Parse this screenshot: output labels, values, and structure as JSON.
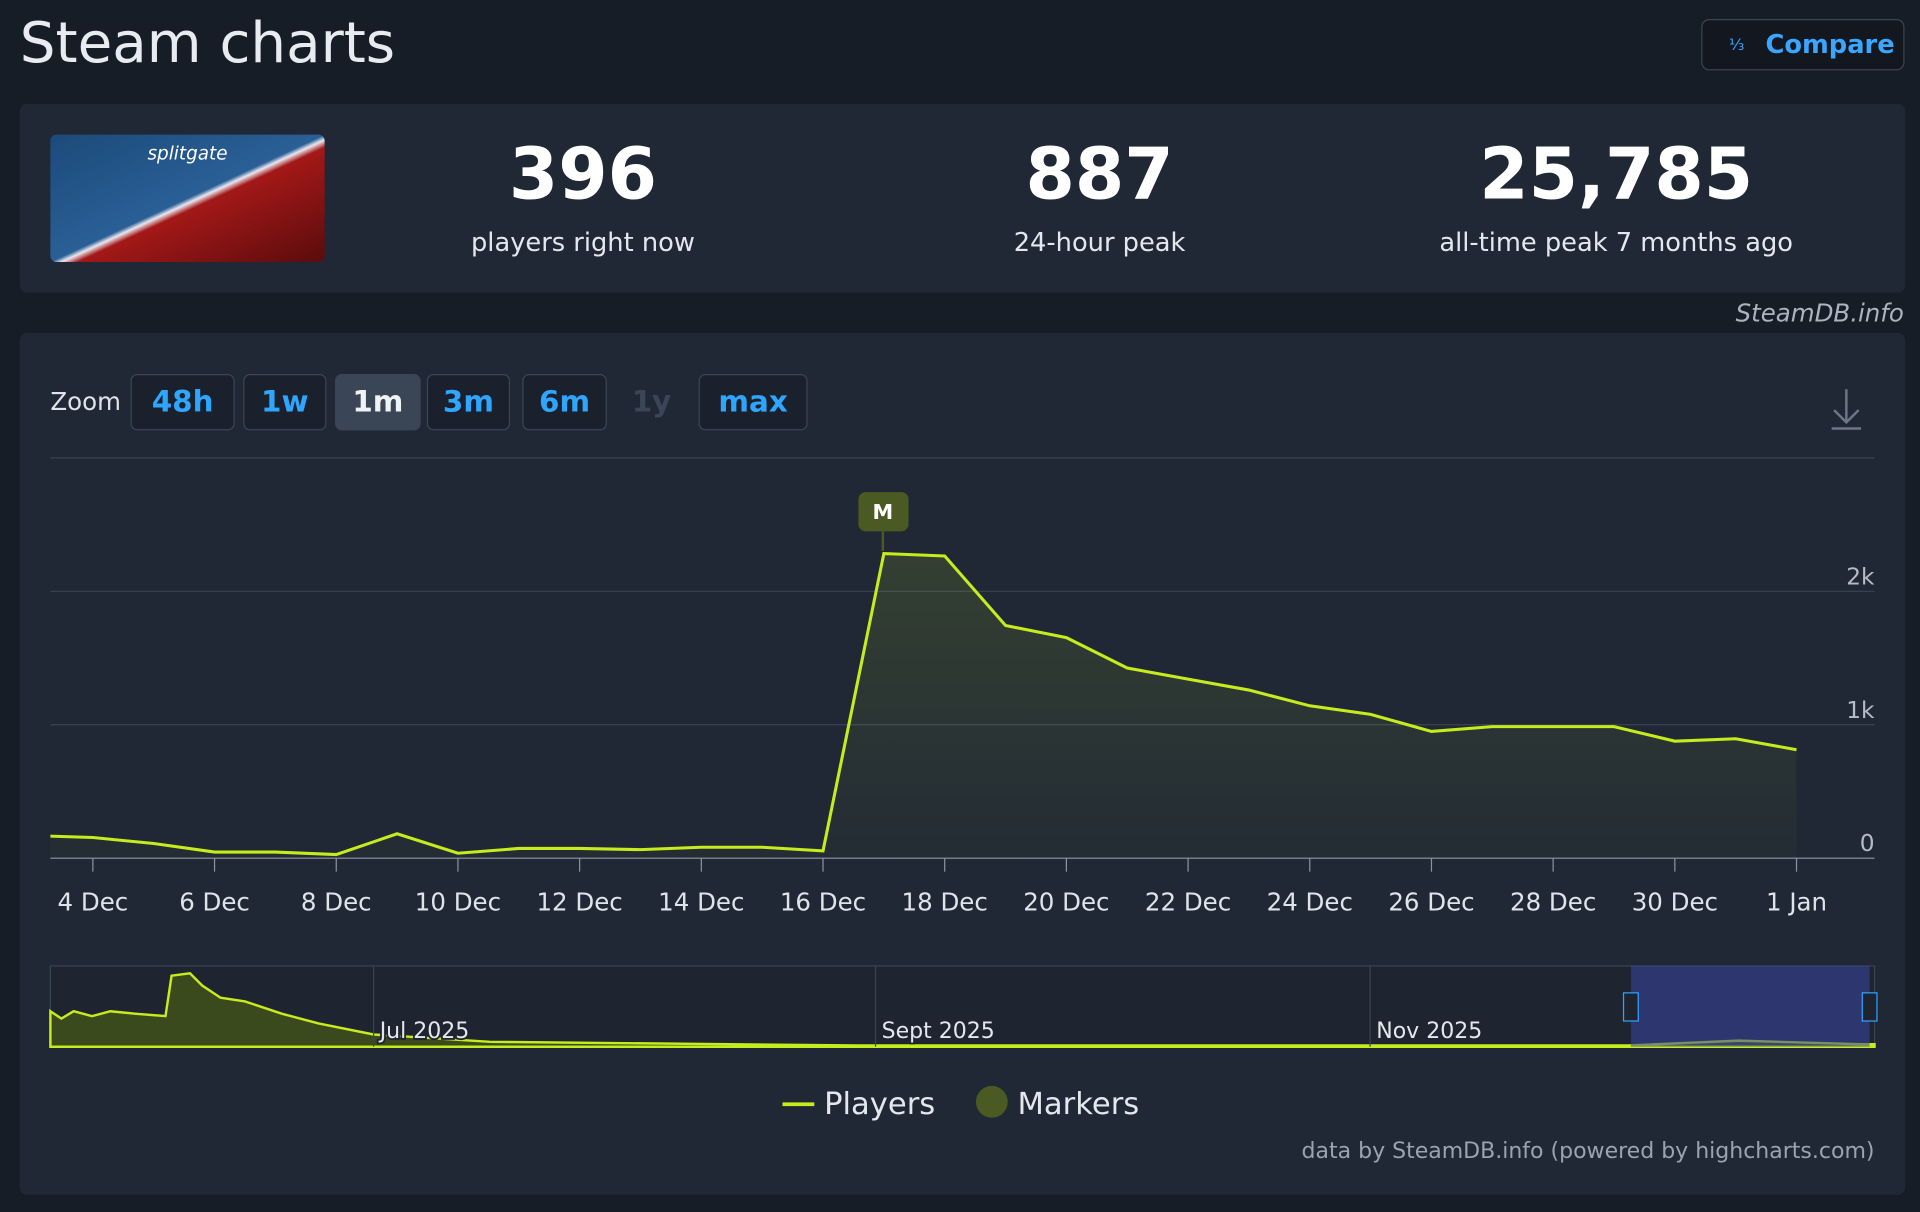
{
  "header": {
    "title": "Steam charts",
    "compare": "Compare"
  },
  "stats": [
    {
      "value": "396",
      "label": "players right now"
    },
    {
      "value": "887",
      "label": "24-hour peak"
    },
    {
      "value": "25,785",
      "label": "all-time peak 7 months ago"
    }
  ],
  "source": "SteamDB.info",
  "zoom": {
    "label": "Zoom",
    "options": [
      "48h",
      "1w",
      "1m",
      "3m",
      "6m",
      "1y",
      "max"
    ],
    "active": "1m",
    "disabled": [
      "1y"
    ]
  },
  "chart_data": {
    "type": "line",
    "categories": [
      null,
      "4 Dec",
      null,
      "6 Dec",
      null,
      "8 Dec",
      null,
      "10 Dec",
      null,
      "12 Dec",
      null,
      "14 Dec",
      null,
      "16 Dec",
      null,
      "18 Dec",
      null,
      "20 Dec",
      null,
      "22 Dec",
      null,
      "24 Dec",
      null,
      "26 Dec",
      null,
      "28 Dec",
      null,
      "30 Dec",
      null,
      "1 Jan"
    ],
    "series": [
      {
        "name": "Players",
        "color": "#c5ec1d",
        "values": [
          170,
          155,
          110,
          46,
          46,
          27,
          183,
          37,
          73,
          73,
          64,
          82,
          82,
          55,
          2283,
          2265,
          1744,
          1653,
          1425,
          1342,
          1260,
          1142,
          1078,
          950,
          986,
          986,
          986,
          877,
          895,
          813
        ]
      }
    ],
    "ylim": [
      0,
      3000
    ],
    "yticks": [
      0,
      {
        "value": 1000,
        "label": "1k"
      },
      {
        "value": 2000,
        "label": "2k"
      }
    ],
    "grid": true,
    "markers": {
      "name": "Markers",
      "color": "#4a5a22",
      "label": "M"
    },
    "navigator_labels": [
      "Jul 2025",
      "Sept 2025",
      "Nov 2025"
    ],
    "credits": "data by SteamDB.info (powered by highcharts.com)"
  }
}
